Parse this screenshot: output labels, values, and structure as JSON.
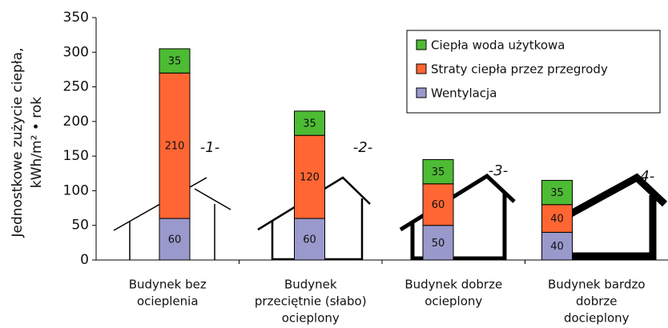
{
  "chart_data": {
    "type": "stacked-bar",
    "y_label": [
      "Jednostkowe zużycie ciepła,",
      "kWh/m² • rok"
    ],
    "categories": [
      [
        "Budynek bez",
        "ocieplenia"
      ],
      [
        "Budynek",
        "przeciętnie (słabo)",
        "ocieplony"
      ],
      [
        "Budynek dobrze",
        "ocieplony"
      ],
      [
        "Budynek bardzo",
        "dobrze",
        "docieplony"
      ]
    ],
    "series": [
      {
        "name": "Wentylacja",
        "color": "#9999cc",
        "values": [
          60,
          60,
          50,
          40
        ]
      },
      {
        "name": "Straty ciepła przez przegrody",
        "color": "#ff6633",
        "values": [
          210,
          120,
          60,
          40
        ]
      },
      {
        "name": "Ciepła woda użytkowa",
        "color": "#4dbb33",
        "values": [
          35,
          35,
          35,
          35
        ]
      }
    ],
    "annotations": [
      "-1-",
      "-2-",
      "-3-",
      "-4-"
    ],
    "ylim": [
      0,
      350
    ],
    "yticks": [
      0,
      50,
      100,
      150,
      200,
      250,
      300,
      350
    ],
    "legend": "top-right"
  }
}
